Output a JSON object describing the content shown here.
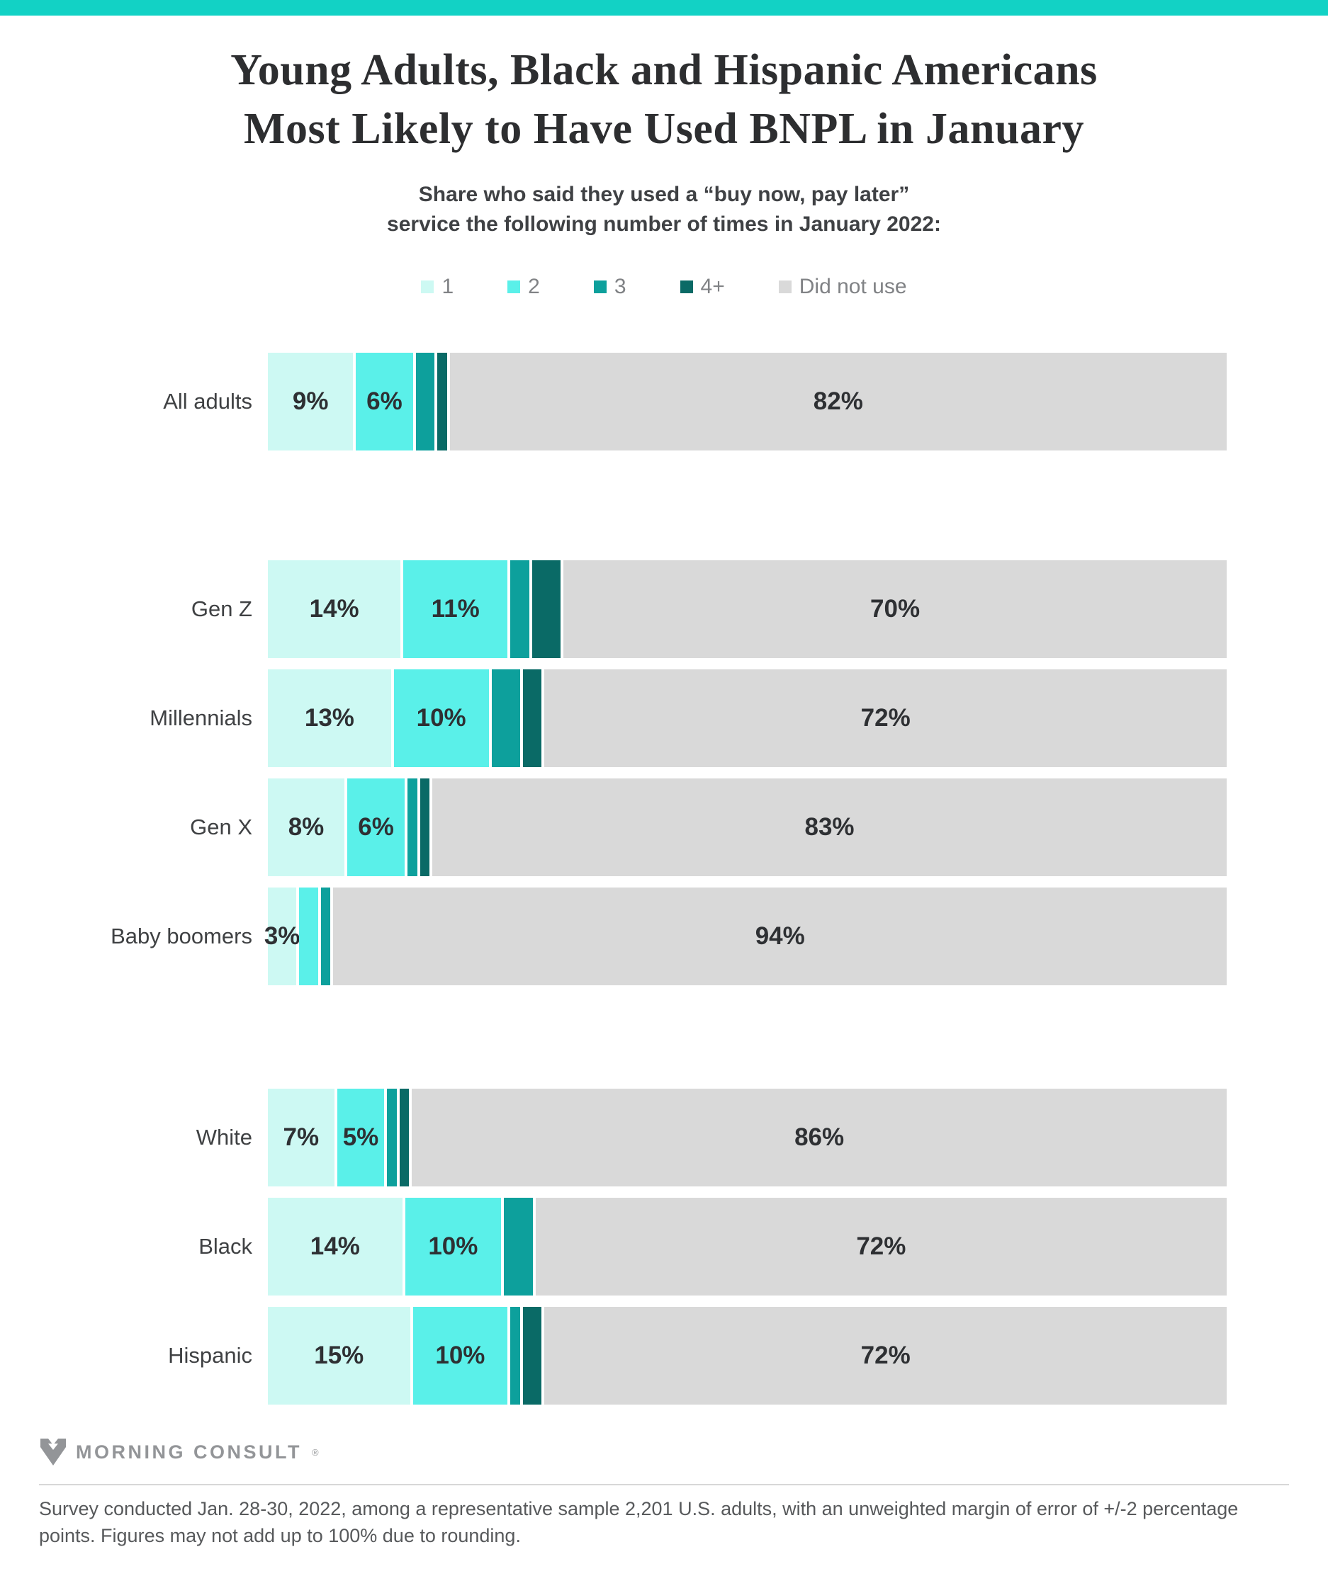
{
  "accent_color": "#12d2c5",
  "title": {
    "line1": "Young Adults, Black and Hispanic Americans",
    "line2": "Most Likely to Have Used BNPL in January"
  },
  "subtitle": {
    "line1": "Share who said they used a “buy now, pay later”",
    "line2": "service the following number of times in January 2022:"
  },
  "legend": {
    "items": [
      {
        "label": "1",
        "color": "#cdf9f3"
      },
      {
        "label": "2",
        "color": "#5af0e9"
      },
      {
        "label": "3",
        "color": "#0da09c"
      },
      {
        "label": "4+",
        "color": "#0a6a66"
      },
      {
        "label": "Did not use",
        "color": "#d9d9d9"
      }
    ]
  },
  "chart_data": {
    "type": "bar",
    "orientation": "horizontal-stacked",
    "unit": "%",
    "xlim": [
      0,
      100
    ],
    "grid": false,
    "legend_position": "top-center",
    "series_names": [
      "1",
      "2",
      "3",
      "4+",
      "Did not use"
    ],
    "colors": [
      "#cdf9f3",
      "#5af0e9",
      "#0da09c",
      "#0a6a66",
      "#d9d9d9"
    ],
    "groups": [
      {
        "rows": [
          {
            "category": "All adults",
            "values": [
              9,
              6,
              2,
              1,
              82
            ],
            "labels": [
              "9%",
              "6%",
              "",
              "",
              "82%"
            ]
          }
        ]
      },
      {
        "rows": [
          {
            "category": "Gen Z",
            "values": [
              14,
              11,
              2,
              3,
              70
            ],
            "labels": [
              "14%",
              "11%",
              "",
              "",
              "70%"
            ]
          },
          {
            "category": "Millennials",
            "values": [
              13,
              10,
              3,
              2,
              72
            ],
            "labels": [
              "13%",
              "10%",
              "",
              "",
              "72%"
            ]
          },
          {
            "category": "Gen X",
            "values": [
              8,
              6,
              1,
              1,
              83
            ],
            "labels": [
              "8%",
              "6%",
              "",
              "",
              "83%"
            ]
          },
          {
            "category": "Baby boomers",
            "values": [
              3,
              2,
              1,
              0,
              94
            ],
            "labels": [
              "3%",
              "",
              "",
              "",
              "94%"
            ]
          }
        ]
      },
      {
        "rows": [
          {
            "category": "White",
            "values": [
              7,
              5,
              1,
              1,
              86
            ],
            "labels": [
              "7%",
              "5%",
              "",
              "",
              "86%"
            ]
          },
          {
            "category": "Black",
            "values": [
              14,
              10,
              3,
              0,
              72
            ],
            "labels": [
              "14%",
              "10%",
              "",
              "",
              "72%"
            ]
          },
          {
            "category": "Hispanic",
            "values": [
              15,
              10,
              1,
              2,
              72
            ],
            "labels": [
              "15%",
              "10%",
              "",
              "",
              "72%"
            ]
          }
        ]
      }
    ]
  },
  "footer": {
    "logo_text": "MORNING CONSULT",
    "logo_registered": "®",
    "note": "Survey conducted Jan. 28-30, 2022, among a representative sample 2,201 U.S. adults, with an unweighted margin of error of +/-2 percentage points. Figures may not add up to 100% due to rounding."
  }
}
